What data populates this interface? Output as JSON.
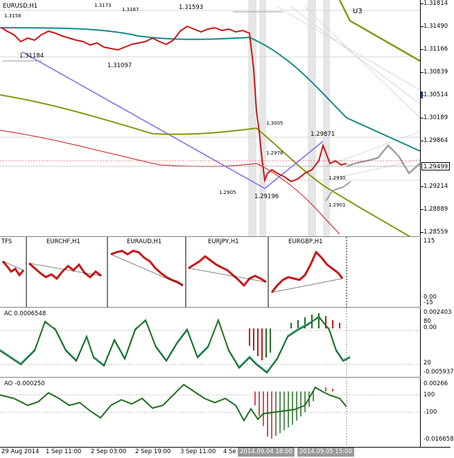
{
  "main": {
    "title": "EURUSD,H1",
    "indicator_label": "U3",
    "current_price": "1.29499",
    "price_scale": [
      "1.31814",
      "1.31490",
      "1.31166",
      "1.30839",
      "1.30514",
      "1.30189",
      "1.29864",
      "1.29214",
      "1.28889",
      "1.28559"
    ],
    "annotations": {
      "top_left": "1.3158",
      "a1": "1.3173",
      "a2": "1.3167",
      "a3": "1.31593",
      "low1": "1.31184",
      "low2": "1.31097",
      "mid1": "1.3005",
      "mid2": "1.2976",
      "high": "1.29871",
      "r1": "1.2930",
      "r2": "1.2901",
      "l1": "1.2905",
      "low3": "1.29196"
    }
  },
  "tfs": {
    "label": "TFS",
    "symbols": [
      "EURCHF,H1",
      "EURAUD,H1",
      "EURJPY,H1",
      "EURGBP,H1"
    ],
    "scale": [
      "115",
      "0.00",
      "-15"
    ]
  },
  "ac": {
    "label": "AC 0.0006548",
    "scale": [
      "0.002403",
      "80",
      "0.00",
      "20",
      "-0.005937"
    ]
  },
  "ao": {
    "label": "AO -0.000250",
    "scale": [
      "0.00266",
      "100",
      "-100",
      "-0.016658"
    ]
  },
  "time_axis": {
    "labels": [
      "29 Aug 2014",
      "1 Sep 11:00",
      "2 Sep 03:00",
      "2 Sep 19:00",
      "3 Sep 11:00",
      "4 Se"
    ],
    "highlight1": "2014.09.04 18:00",
    "highlight2": "2014.09.05 15:00"
  },
  "colors": {
    "teal": "#138a8a",
    "olive": "#7f9a12",
    "red": "#cc1414",
    "purple": "#7b68ee",
    "green": "#1e6e1e",
    "ac_light": "#2bb0c8"
  }
}
